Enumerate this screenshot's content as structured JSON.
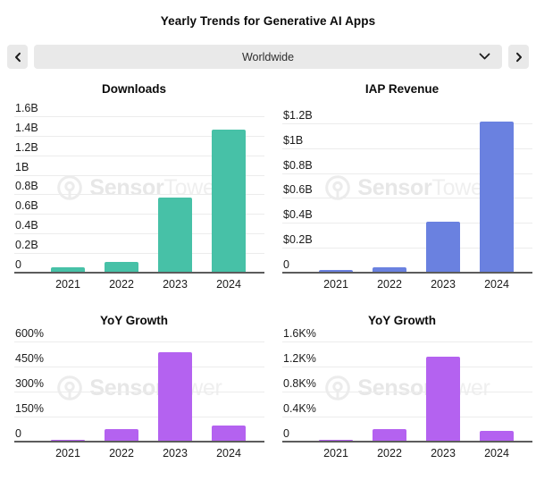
{
  "page": {
    "title": "Yearly Trends for Generative AI Apps"
  },
  "controls": {
    "prev_icon": "chevron-left",
    "next_icon": "chevron-right",
    "region_selector": {
      "value": "Worldwide",
      "dropdown_icon": "chevron-down"
    }
  },
  "watermark": {
    "logo": "sensor-tower-circle-logo",
    "brand_bold": "Sensor",
    "brand_light": "Tower"
  },
  "colors": {
    "downloads_bar": "#47C1A7",
    "revenue_bar": "#6A81E0",
    "growth_bar": "#B462F0",
    "axis": "#5c5c5c",
    "gridline": "#ececec",
    "control_bg": "#e9e9e9"
  },
  "chart_data": [
    {
      "type": "bar",
      "title": "Downloads",
      "categories": [
        "2021",
        "2022",
        "2023",
        "2024"
      ],
      "values": [
        0.05,
        0.1,
        0.76,
        1.45
      ],
      "unit": "billions of downloads",
      "ylim": [
        0,
        1.6
      ],
      "grid": "horizontal",
      "legend": "none",
      "bar_color": "#47C1A7",
      "yticks": [
        {
          "label": "1.6B",
          "value": 1.6
        },
        {
          "label": "1.4B",
          "value": 1.4
        },
        {
          "label": "1.2B",
          "value": 1.2
        },
        {
          "label": "1B",
          "value": 1.0
        },
        {
          "label": "0.8B",
          "value": 0.8
        },
        {
          "label": "0.6B",
          "value": 0.6
        },
        {
          "label": "0.4B",
          "value": 0.4
        },
        {
          "label": "0.2B",
          "value": 0.2
        },
        {
          "label": "0",
          "value": 0
        }
      ]
    },
    {
      "type": "bar",
      "title": "IAP Revenue",
      "categories": [
        "2021",
        "2022",
        "2023",
        "2024"
      ],
      "values": [
        0.012,
        0.035,
        0.4,
        1.21
      ],
      "unit": "billions USD",
      "ylim": [
        0,
        1.2
      ],
      "grid": "horizontal",
      "legend": "none",
      "bar_color": "#6A81E0",
      "yticks": [
        {
          "label": "$1.2B",
          "value": 1.2
        },
        {
          "label": "$1B",
          "value": 1.0
        },
        {
          "label": "$0.8B",
          "value": 0.8
        },
        {
          "label": "$0.6B",
          "value": 0.6
        },
        {
          "label": "$0.4B",
          "value": 0.4
        },
        {
          "label": "$0.2B",
          "value": 0.2
        },
        {
          "label": "0",
          "value": 0
        }
      ]
    },
    {
      "type": "bar",
      "title": "YoY Growth",
      "categories": [
        "2021",
        "2022",
        "2023",
        "2024"
      ],
      "values": [
        6,
        70,
        530,
        90
      ],
      "unit": "percent (downloads growth)",
      "ylim": [
        0,
        600
      ],
      "grid": "horizontal",
      "legend": "none",
      "bar_color": "#B462F0",
      "yticks": [
        {
          "label": "600%",
          "value": 600
        },
        {
          "label": "450%",
          "value": 450
        },
        {
          "label": "300%",
          "value": 300
        },
        {
          "label": "150%",
          "value": 150
        },
        {
          "label": "0",
          "value": 0
        }
      ]
    },
    {
      "type": "bar",
      "title": "YoY Growth",
      "categories": [
        "2021",
        "2022",
        "2023",
        "2024"
      ],
      "values": [
        12,
        180,
        1350,
        160
      ],
      "unit": "percent (revenue growth)",
      "ylim": [
        0,
        1600
      ],
      "grid": "horizontal",
      "legend": "none",
      "bar_color": "#B462F0",
      "yticks": [
        {
          "label": "1.6K%",
          "value": 1600
        },
        {
          "label": "1.2K%",
          "value": 1200
        },
        {
          "label": "0.8K%",
          "value": 800
        },
        {
          "label": "0.4K%",
          "value": 400
        },
        {
          "label": "0",
          "value": 0
        }
      ]
    }
  ]
}
